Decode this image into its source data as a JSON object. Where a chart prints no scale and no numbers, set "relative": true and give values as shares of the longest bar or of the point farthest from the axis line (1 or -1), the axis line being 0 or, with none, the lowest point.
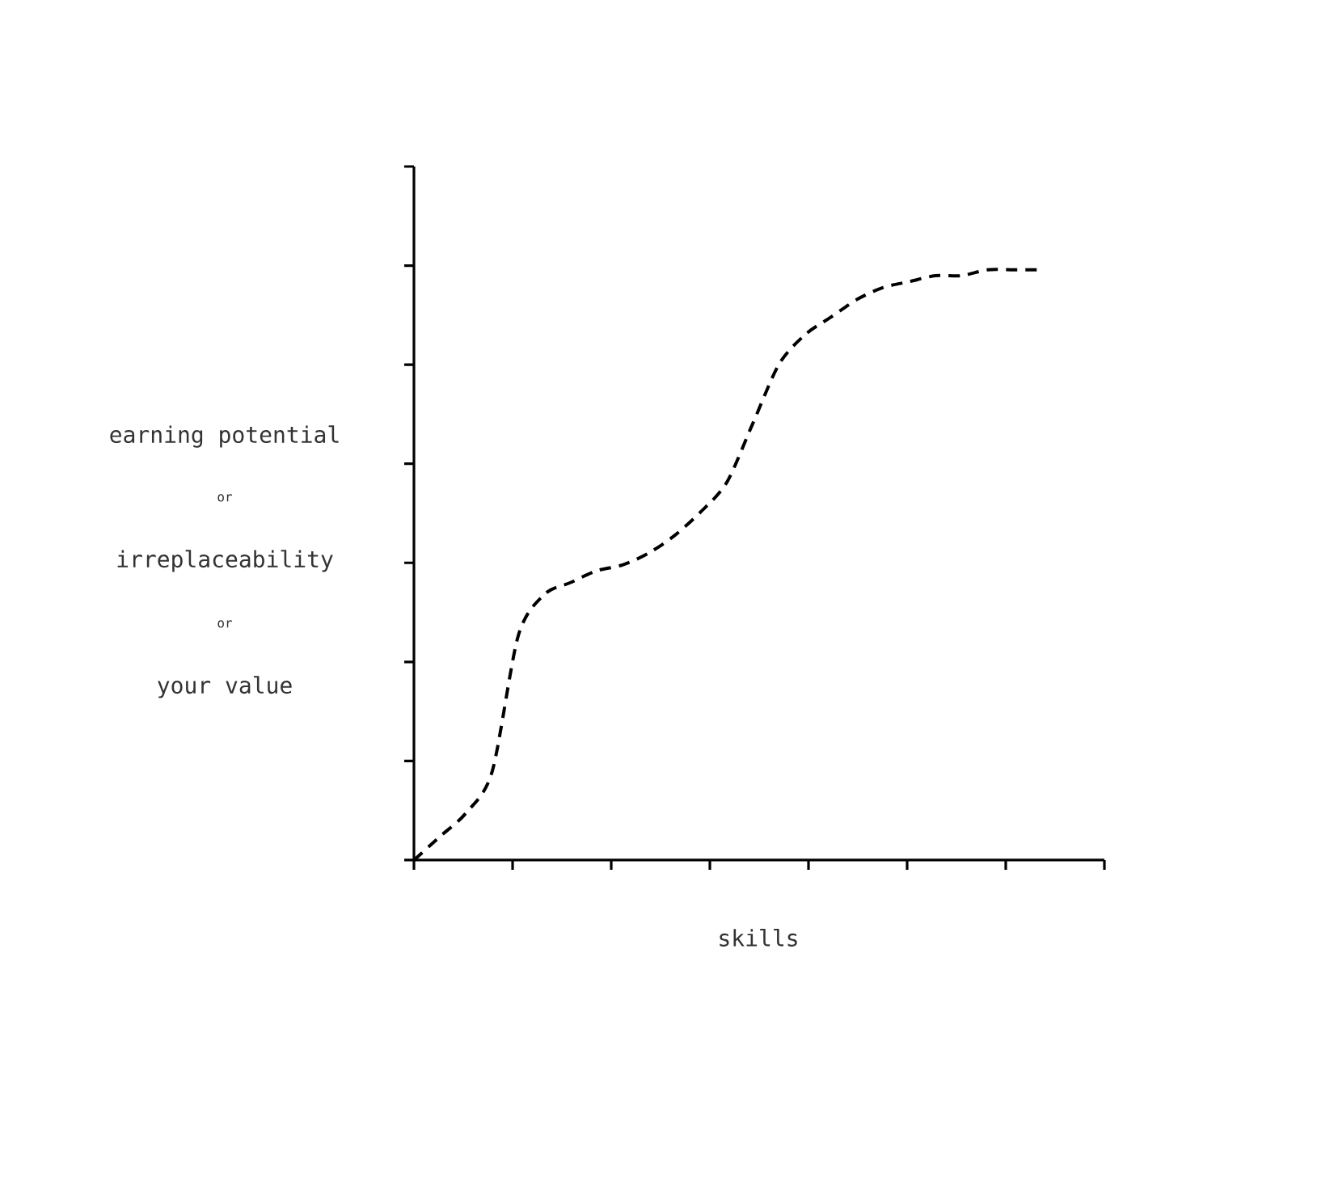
{
  "chart_data": {
    "type": "line",
    "relative": true,
    "xlabel": "skills",
    "ylabel": "earning potential",
    "annotations": [
      "or",
      "irreplaceability",
      "or",
      "your value"
    ],
    "categories": [
      null,
      null,
      null,
      null,
      null,
      null,
      null,
      null,
      null,
      null,
      null,
      null,
      null,
      null,
      null,
      null,
      null,
      null,
      null,
      null,
      null,
      null,
      null,
      null,
      null
    ],
    "series": [
      {
        "color": "#000000",
        "line_style": "dashed",
        "values": [
          0,
          0.04,
          0.08,
          0.15,
          0.38,
          0.45,
          0.47,
          0.49,
          0.5,
          0.52,
          0.55,
          0.59,
          0.64,
          0.74,
          0.84,
          0.89,
          0.92,
          0.95,
          0.97,
          0.98,
          0.99,
          0.99,
          1,
          1,
          1
        ]
      }
    ]
  }
}
